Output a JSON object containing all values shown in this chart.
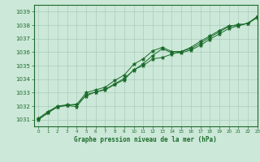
{
  "xlabel": "Graphe pression niveau de la mer (hPa)",
  "bg_color": "#cce8d8",
  "grid_color": "#aaccbc",
  "line_color": "#1a6b2a",
  "text_color": "#1a6b2a",
  "xlim": [
    -0.5,
    23
  ],
  "ylim": [
    1030.5,
    1039.5
  ],
  "yticks": [
    1031,
    1032,
    1033,
    1034,
    1035,
    1036,
    1037,
    1038,
    1039
  ],
  "xticks": [
    0,
    1,
    2,
    3,
    4,
    5,
    6,
    7,
    8,
    9,
    10,
    11,
    12,
    13,
    14,
    15,
    16,
    17,
    18,
    19,
    20,
    21,
    22,
    23
  ],
  "series": [
    [
      1031.1,
      1031.6,
      1032.0,
      1032.1,
      1032.1,
      1033.0,
      1033.2,
      1033.4,
      1033.9,
      1034.3,
      1035.1,
      1035.5,
      1036.1,
      1036.35,
      1036.05,
      1036.05,
      1036.25,
      1036.65,
      1037.1,
      1037.5,
      1037.9,
      1038.05,
      1038.1,
      1038.6
    ],
    [
      1031.05,
      1031.55,
      1031.95,
      1032.05,
      1032.15,
      1032.75,
      1033.05,
      1033.2,
      1033.6,
      1033.95,
      1034.7,
      1035.0,
      1035.5,
      1035.6,
      1035.85,
      1036.05,
      1036.35,
      1036.8,
      1037.2,
      1037.6,
      1037.95,
      1037.95,
      1038.15,
      1038.55
    ],
    [
      1031.0,
      1031.5,
      1031.95,
      1032.05,
      1031.95,
      1032.85,
      1033.05,
      1033.25,
      1033.65,
      1034.05,
      1034.65,
      1035.15,
      1035.75,
      1036.25,
      1035.95,
      1035.95,
      1036.15,
      1036.5,
      1036.95,
      1037.35,
      1037.75,
      1037.95,
      1038.15,
      1038.65
    ]
  ]
}
